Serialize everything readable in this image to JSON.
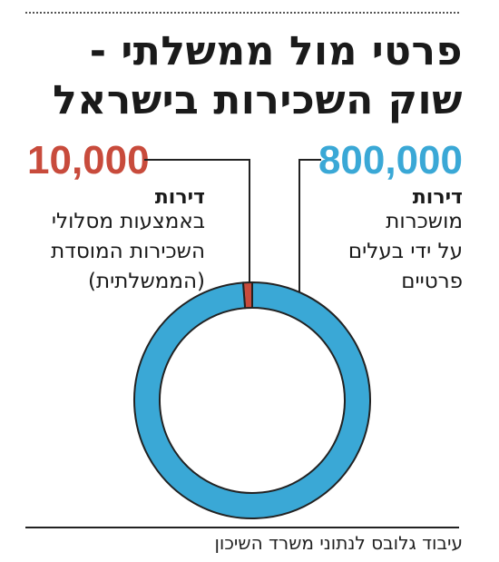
{
  "title": {
    "line1": "פרטי מול ממשלתי -",
    "line2": "שוק השכירות בישראל"
  },
  "private": {
    "value": "800,000",
    "unit": "דירות",
    "desc_lines": [
      "מושכרות",
      "על ידי בעלים",
      "פרטיים"
    ]
  },
  "public": {
    "value": "10,000",
    "unit": "דירות",
    "desc_lines": [
      "באמצעות מסלולי",
      "השכירות המוסדת",
      "(הממשלתית)"
    ]
  },
  "source": "עיבוד גלובס לנתוני משרד השיכון",
  "colors": {
    "private": "#3aa8d6",
    "public": "#c84b3c",
    "text": "#1a1a1a"
  },
  "chart_data": {
    "type": "pie",
    "style": "donut",
    "slices": [
      {
        "label": "800,000",
        "value": 800000,
        "color": "#3aa8d6"
      },
      {
        "label": "10,000",
        "value": 10000,
        "color": "#c84b3c"
      }
    ]
  }
}
